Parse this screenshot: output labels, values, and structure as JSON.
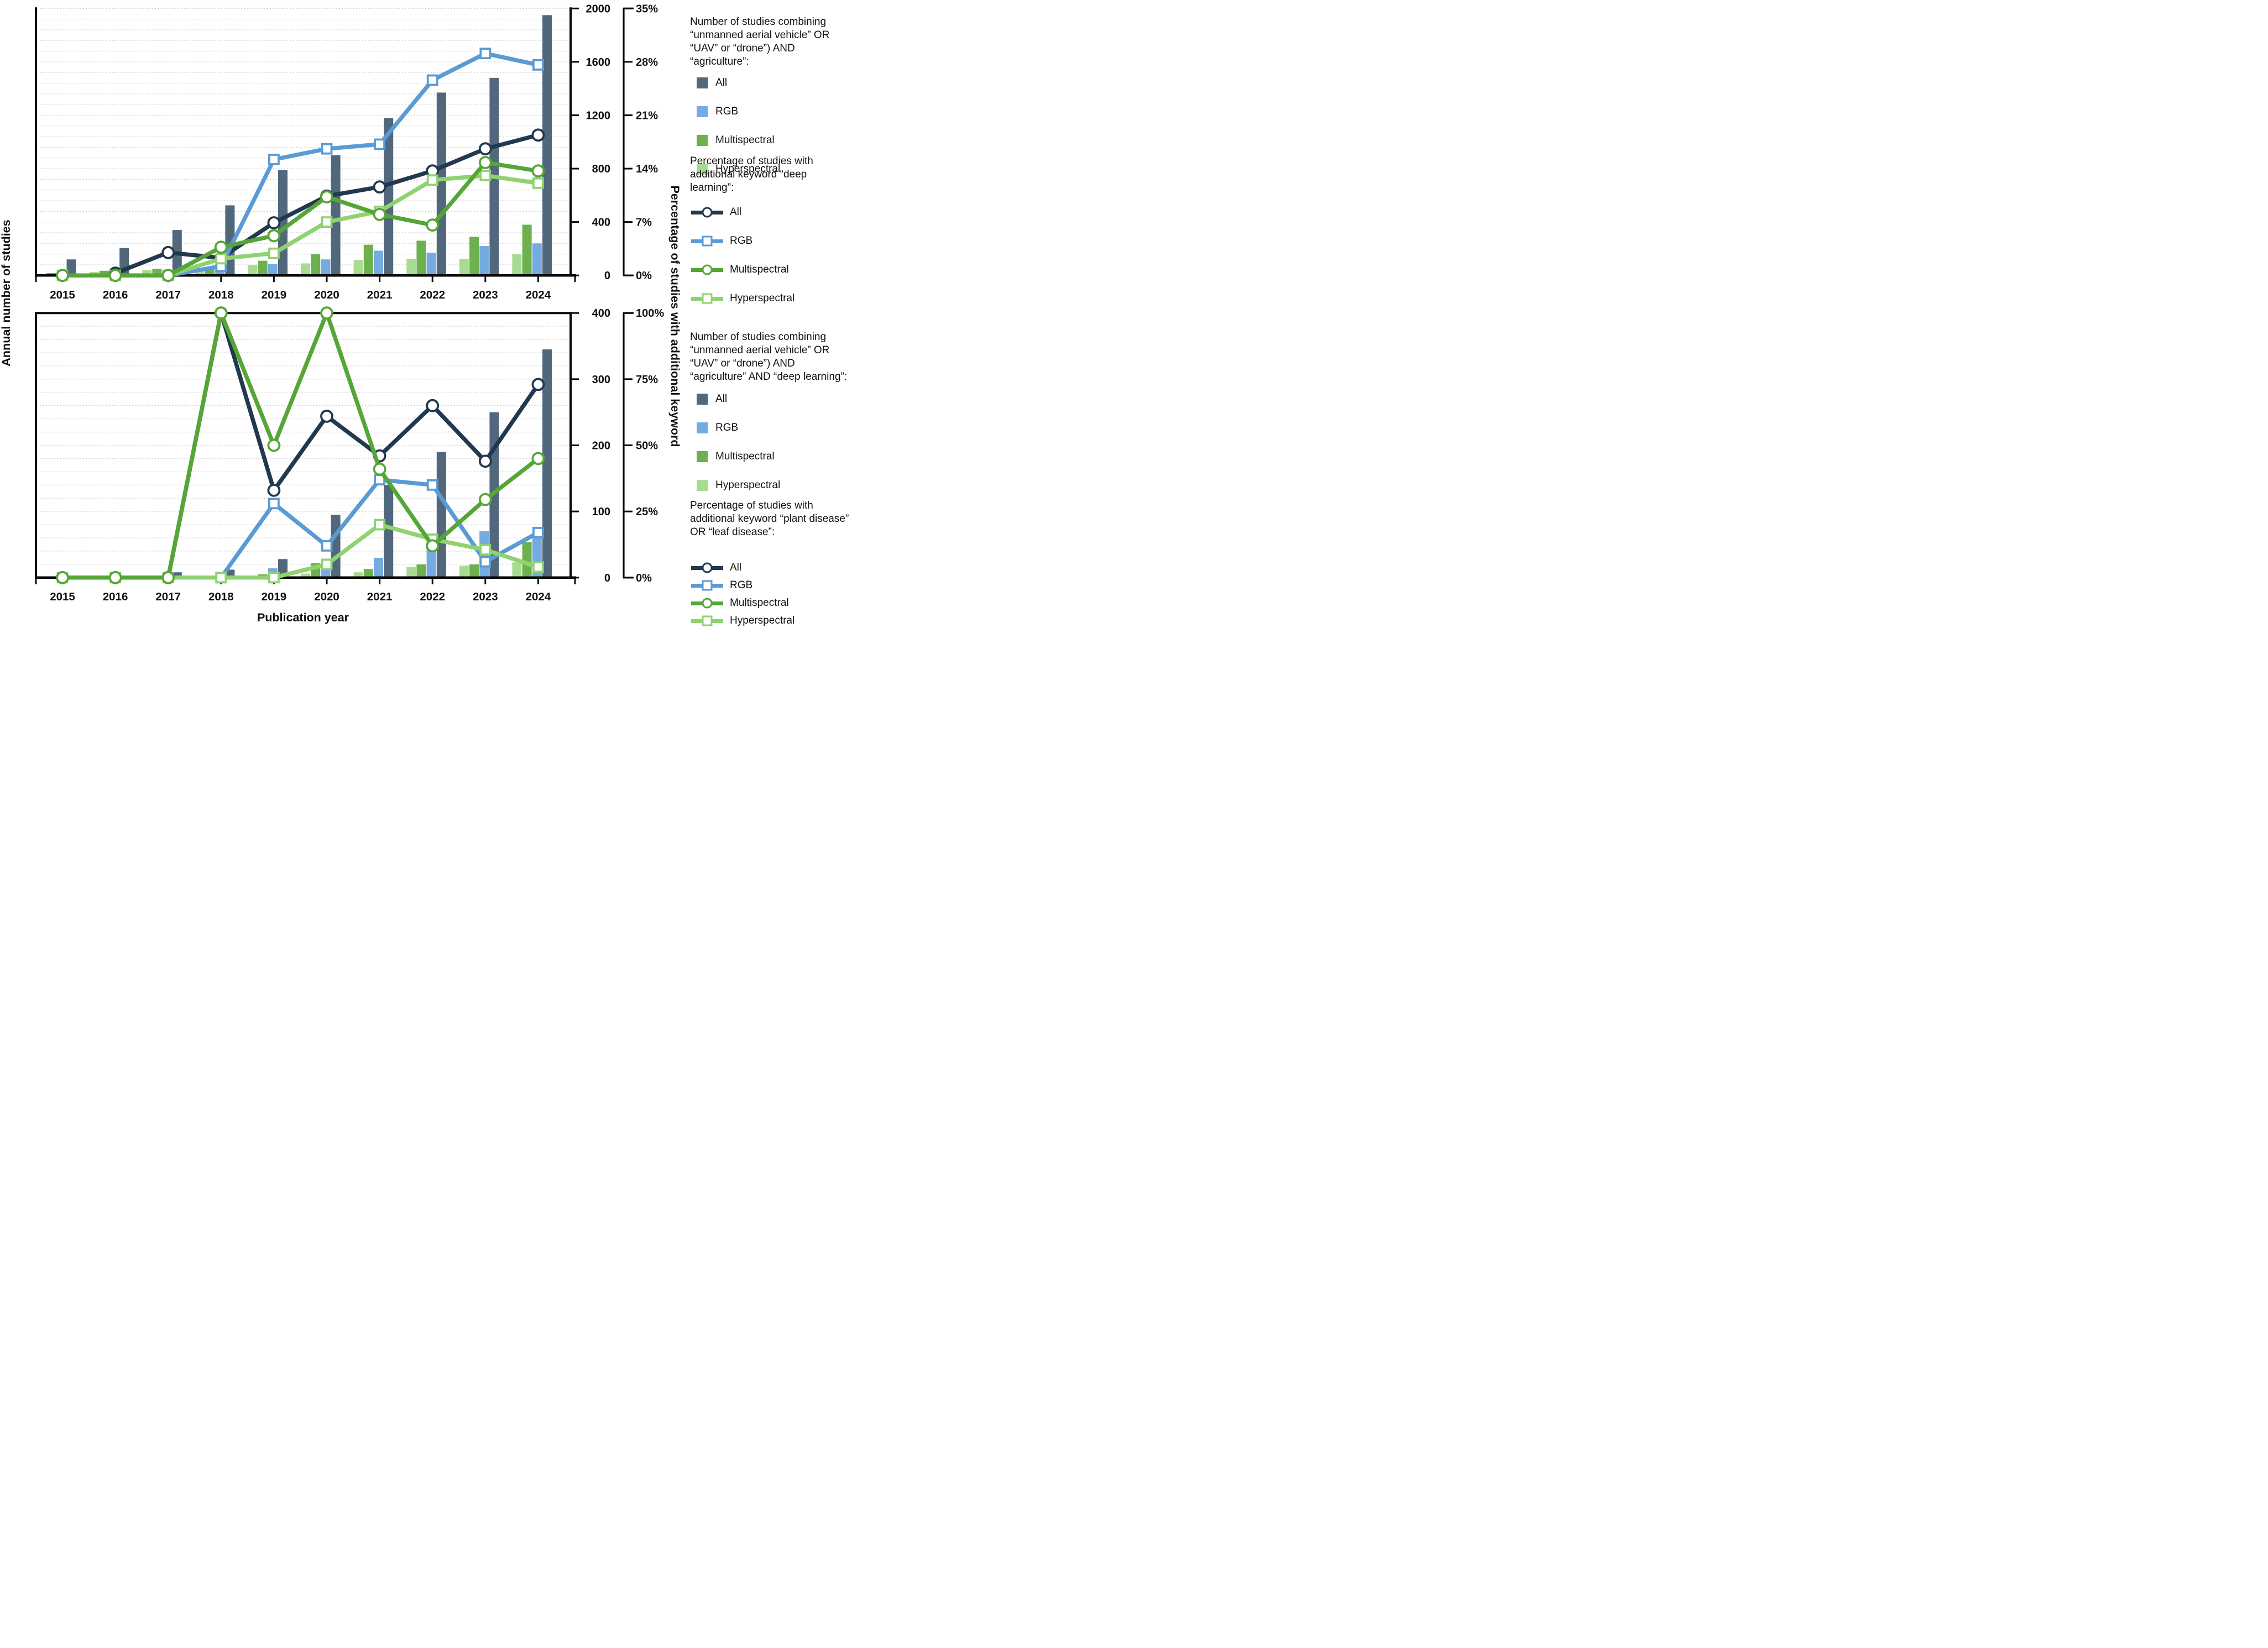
{
  "axis_titles": {
    "left": "Annual number of studies",
    "right": "Percentage of studies with additional keyword",
    "bottom": "Publication year"
  },
  "colors": {
    "all_bar": "#51677c",
    "rgb_bar": "#74abe0",
    "multispectral_bar": "#6db14e",
    "hyperspectral_bar": "#a9da91",
    "all_line": "#22384e",
    "rgb_line": "#5b9bd5",
    "multispectral_line": "#55a636",
    "hyperspectral_line": "#8fd26f",
    "grid": "#c9c9c9",
    "axis": "#0a0a0a"
  },
  "chart_data": [
    {
      "id": "top",
      "type": "bar",
      "title": "Studies combining UAV/drone AND agriculture, with percentage having keyword deep learning",
      "categories": [
        "2015",
        "2016",
        "2017",
        "2018",
        "2019",
        "2020",
        "2021",
        "2022",
        "2023",
        "2024"
      ],
      "y_left": {
        "min": 0,
        "max": 2000,
        "tick_values": [
          0,
          400,
          800,
          1200,
          1600,
          2000
        ],
        "tick_labels": [
          "0",
          "400",
          "800",
          "1200",
          "1600",
          "2000"
        ]
      },
      "y_right": {
        "min": 0,
        "max": 35,
        "tick_values": [
          0,
          7,
          14,
          21,
          28,
          35
        ],
        "tick_labels": [
          "0%",
          "7%",
          "14%",
          "21%",
          "28%",
          "35%"
        ]
      },
      "grid_step_pct": 1.4,
      "bars": [
        {
          "name": "All",
          "values": [
            120,
            205,
            340,
            525,
            790,
            900,
            1180,
            1370,
            1480,
            1950
          ]
        },
        {
          "name": "RGB",
          "values": [
            3,
            6,
            12,
            40,
            85,
            120,
            185,
            170,
            220,
            240
          ]
        },
        {
          "name": "Multispectral",
          "values": [
            18,
            35,
            50,
            60,
            110,
            160,
            230,
            260,
            290,
            380
          ]
        },
        {
          "name": "Hyperspectral",
          "values": [
            12,
            25,
            40,
            50,
            78,
            90,
            115,
            125,
            125,
            160
          ]
        }
      ],
      "lines": [
        {
          "name": "All",
          "marker": "circle",
          "values": [
            null,
            0.3,
            3.0,
            2.3,
            6.9,
            10.4,
            11.6,
            13.7,
            16.6,
            18.4
          ]
        },
        {
          "name": "RGB",
          "marker": "square",
          "values": [
            null,
            null,
            0,
            1.2,
            15.2,
            16.6,
            17.2,
            25.6,
            29.1,
            27.6
          ]
        },
        {
          "name": "Multispectral",
          "marker": "circle",
          "values": [
            0,
            0,
            0,
            3.7,
            5.2,
            10.3,
            8.0,
            6.6,
            14.8,
            13.7
          ]
        },
        {
          "name": "Hyperspectral",
          "marker": "square",
          "values": [
            0,
            0,
            0,
            2.2,
            2.9,
            7.0,
            8.4,
            12.5,
            13.1,
            12.1
          ]
        }
      ]
    },
    {
      "id": "bottom",
      "type": "bar",
      "title": "Studies combining UAV/drone AND agriculture AND deep learning, with percentage having keyword plant disease OR leaf disease",
      "categories": [
        "2015",
        "2016",
        "2017",
        "2018",
        "2019",
        "2020",
        "2021",
        "2022",
        "2023",
        "2024"
      ],
      "y_left": {
        "min": 0,
        "max": 400,
        "tick_values": [
          0,
          100,
          200,
          300,
          400
        ],
        "tick_labels": [
          "0",
          "100",
          "200",
          "300",
          "400"
        ]
      },
      "y_right": {
        "min": 0,
        "max": 100,
        "tick_values": [
          0,
          25,
          50,
          75,
          100
        ],
        "tick_labels": [
          "0%",
          "25%",
          "50%",
          "75%",
          "100%"
        ]
      },
      "grid_step_pct": 5,
      "bars": [
        {
          "name": "All",
          "values": [
            0,
            0,
            8,
            12,
            28,
            95,
            140,
            190,
            250,
            345
          ]
        },
        {
          "name": "RGB",
          "values": [
            0,
            0,
            0,
            2,
            14,
            18,
            30,
            48,
            70,
            67
          ]
        },
        {
          "name": "Multispectral",
          "values": [
            0,
            0,
            0,
            1,
            5,
            22,
            13,
            20,
            20,
            54
          ]
        },
        {
          "name": "Hyperspectral",
          "values": [
            0,
            0,
            0,
            0,
            2,
            6,
            8,
            16,
            18,
            23
          ]
        }
      ],
      "lines": [
        {
          "name": "All",
          "marker": "circle",
          "values": [
            null,
            null,
            0,
            100,
            33,
            61,
            46,
            65,
            44,
            73
          ]
        },
        {
          "name": "RGB",
          "marker": "square",
          "values": [
            null,
            null,
            null,
            0,
            28,
            12,
            37,
            35,
            6,
            17
          ]
        },
        {
          "name": "Multispectral",
          "marker": "circle",
          "values": [
            0,
            0,
            0,
            100,
            50,
            100,
            41,
            12,
            29.5,
            45
          ]
        },
        {
          "name": "Hyperspectral",
          "marker": "square",
          "values": [
            0,
            0,
            0,
            0,
            0,
            5,
            20,
            14.5,
            10.5,
            4
          ]
        }
      ]
    }
  ],
  "legend": {
    "blocks": [
      {
        "kind": "bars",
        "title_lines": [
          "Number of studies combining",
          "“unmanned aerial vehicle” OR",
          "“UAV” or “drone”) AND",
          "“agriculture”:"
        ],
        "items": [
          {
            "label": "All",
            "color_key": "all_bar"
          },
          {
            "label": "RGB",
            "color_key": "rgb_bar"
          },
          {
            "label": "Multispectral",
            "color_key": "multispectral_bar"
          },
          {
            "label": "Hyperspectral",
            "color_key": "hyperspectral_bar"
          }
        ]
      },
      {
        "kind": "lines",
        "title_lines": [
          "Percentage of studies with",
          "additional keyword “deep",
          "learning”:"
        ],
        "items": [
          {
            "label": "All",
            "color_key": "all_line",
            "marker": "circle"
          },
          {
            "label": "RGB",
            "color_key": "rgb_line",
            "marker": "square"
          },
          {
            "label": "Multispectral",
            "color_key": "multispectral_line",
            "marker": "circle"
          },
          {
            "label": "Hyperspectral",
            "color_key": "hyperspectral_line",
            "marker": "square"
          }
        ]
      },
      {
        "kind": "bars",
        "title_lines": [
          "Number of studies combining",
          "“unmanned aerial vehicle” OR",
          "“UAV” or “drone”) AND",
          "“agriculture” AND “deep learning”:"
        ],
        "items": [
          {
            "label": "All",
            "color_key": "all_bar"
          },
          {
            "label": "RGB",
            "color_key": "rgb_bar"
          },
          {
            "label": "Multispectral",
            "color_key": "multispectral_bar"
          },
          {
            "label": "Hyperspectral",
            "color_key": "hyperspectral_bar"
          }
        ]
      },
      {
        "kind": "lines",
        "title_lines": [
          "Percentage of studies with",
          "additional keyword “plant disease”",
          "OR “leaf disease”:"
        ],
        "items": [
          {
            "label": "All",
            "color_key": "all_line",
            "marker": "circle"
          },
          {
            "label": "RGB",
            "color_key": "rgb_line",
            "marker": "square"
          },
          {
            "label": "Multispectral",
            "color_key": "multispectral_line",
            "marker": "circle"
          },
          {
            "label": "Hyperspectral",
            "color_key": "hyperspectral_line",
            "marker": "square"
          }
        ]
      }
    ]
  }
}
